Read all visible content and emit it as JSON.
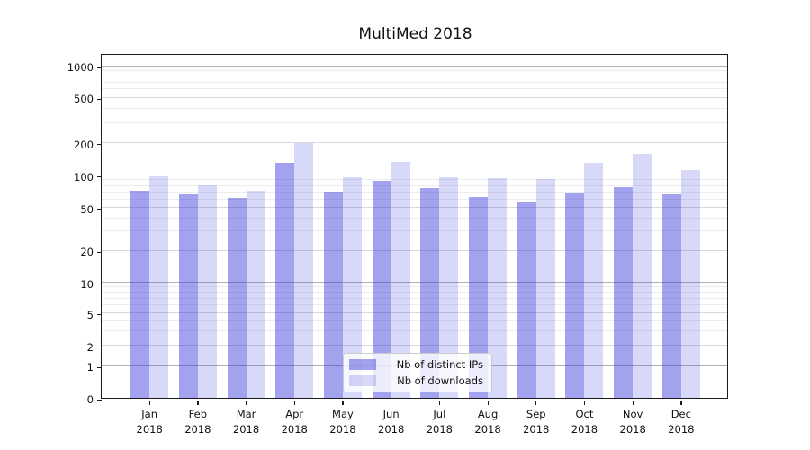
{
  "chart_data": {
    "type": "bar",
    "title": "MultiMed 2018",
    "xlabel": "",
    "ylabel": "",
    "months": [
      "Jan",
      "Feb",
      "Mar",
      "Apr",
      "May",
      "Jun",
      "Jul",
      "Aug",
      "Sep",
      "Oct",
      "Nov",
      "Dec"
    ],
    "year_label": "2018",
    "series": [
      {
        "name": "Nb of distinct IPs",
        "color": "#3030d9",
        "alpha": 0.45,
        "values": [
          72,
          66,
          61,
          129,
          70,
          88,
          75,
          62,
          56,
          67,
          77,
          66
        ]
      },
      {
        "name": "Nb of downloads",
        "color": "#3030d9",
        "alpha": 0.19,
        "values": [
          97,
          80,
          72,
          197,
          95,
          132,
          96,
          93,
          92,
          130,
          156,
          111
        ]
      }
    ],
    "yscale": "symlog",
    "yticks": [
      0,
      1,
      2,
      5,
      10,
      20,
      50,
      100,
      200,
      500,
      1000
    ],
    "ylim": [
      0,
      1300
    ],
    "grid": "both",
    "legend_position": "lower center",
    "colors": {
      "bar_dark_rendered": "#a2a2ee",
      "bar_light_rendered": "#d8d8f8",
      "grid_major": "#b0b0b0",
      "grid_labeled": "#d8d8d8",
      "grid_minor": "#ededed",
      "text": "#111111",
      "spine": "#1c1c1c"
    }
  }
}
